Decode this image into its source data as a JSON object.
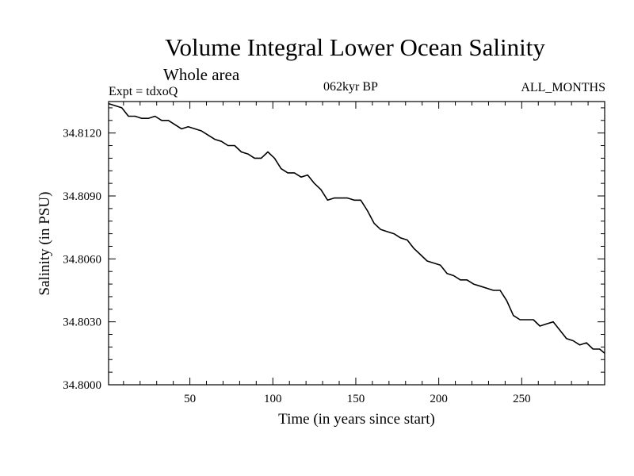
{
  "header": {
    "title": "Volume Integral Lower Ocean Salinity",
    "subtitle": "Whole area",
    "experiment": "Expt = tdxoQ",
    "period": "062kyr BP",
    "months": "ALL_MONTHS"
  },
  "chart_data": {
    "type": "line",
    "title": "Volume Integral Lower Ocean Salinity",
    "subtitle": "Whole area",
    "xlabel": "Time (in years since start)",
    "ylabel": "Salinity (in PSU)",
    "xlim": [
      1,
      300
    ],
    "ylim": [
      34.8,
      34.8135
    ],
    "xticks": [
      50,
      100,
      150,
      200,
      250
    ],
    "xtick_labels": [
      "50",
      "100",
      "150",
      "200",
      "250"
    ],
    "yticks": [
      34.8,
      34.803,
      34.806,
      34.809,
      34.812
    ],
    "ytick_labels": [
      "34.8000",
      "34.8030",
      "34.8060",
      "34.8090",
      "34.8120"
    ],
    "grid": false,
    "series": [
      {
        "color": "#000000",
        "x": [
          1,
          5,
          9,
          13,
          17,
          21,
          25,
          29,
          33,
          37,
          41,
          45,
          49,
          53,
          57,
          61,
          65,
          69,
          73,
          77,
          81,
          85,
          89,
          93,
          97,
          101,
          105,
          109,
          113,
          117,
          121,
          125,
          129,
          133,
          137,
          141,
          145,
          149,
          153,
          157,
          161,
          165,
          169,
          173,
          177,
          181,
          185,
          189,
          193,
          197,
          201,
          205,
          209,
          213,
          217,
          221,
          225,
          229,
          233,
          237,
          241,
          245,
          249,
          253,
          257,
          261,
          265,
          269,
          273,
          277,
          281,
          285,
          289,
          293,
          297,
          300
        ],
        "values": [
          34.8134,
          34.8133,
          34.8132,
          34.8128,
          34.8128,
          34.8127,
          34.8127,
          34.8128,
          34.8126,
          34.8126,
          34.8124,
          34.8122,
          34.8123,
          34.8122,
          34.8121,
          34.8119,
          34.8117,
          34.8116,
          34.8114,
          34.8114,
          34.8111,
          34.811,
          34.8108,
          34.8108,
          34.8111,
          34.8108,
          34.8103,
          34.8101,
          34.8101,
          34.8099,
          34.81,
          34.8096,
          34.8093,
          34.8088,
          34.8089,
          34.8089,
          34.8089,
          34.8088,
          34.8088,
          34.8083,
          34.8077,
          34.8074,
          34.8073,
          34.8072,
          34.807,
          34.8069,
          34.8065,
          34.8062,
          34.8059,
          34.8058,
          34.8057,
          34.8053,
          34.8052,
          34.805,
          34.805,
          34.8048,
          34.8047,
          34.8046,
          34.8045,
          34.8045,
          34.804,
          34.8033,
          34.8031,
          34.8031,
          34.8031,
          34.8028,
          34.8029,
          34.803,
          34.8026,
          34.8022,
          34.8021,
          34.8019,
          34.802,
          34.8017,
          34.8017,
          34.8015
        ]
      }
    ]
  }
}
